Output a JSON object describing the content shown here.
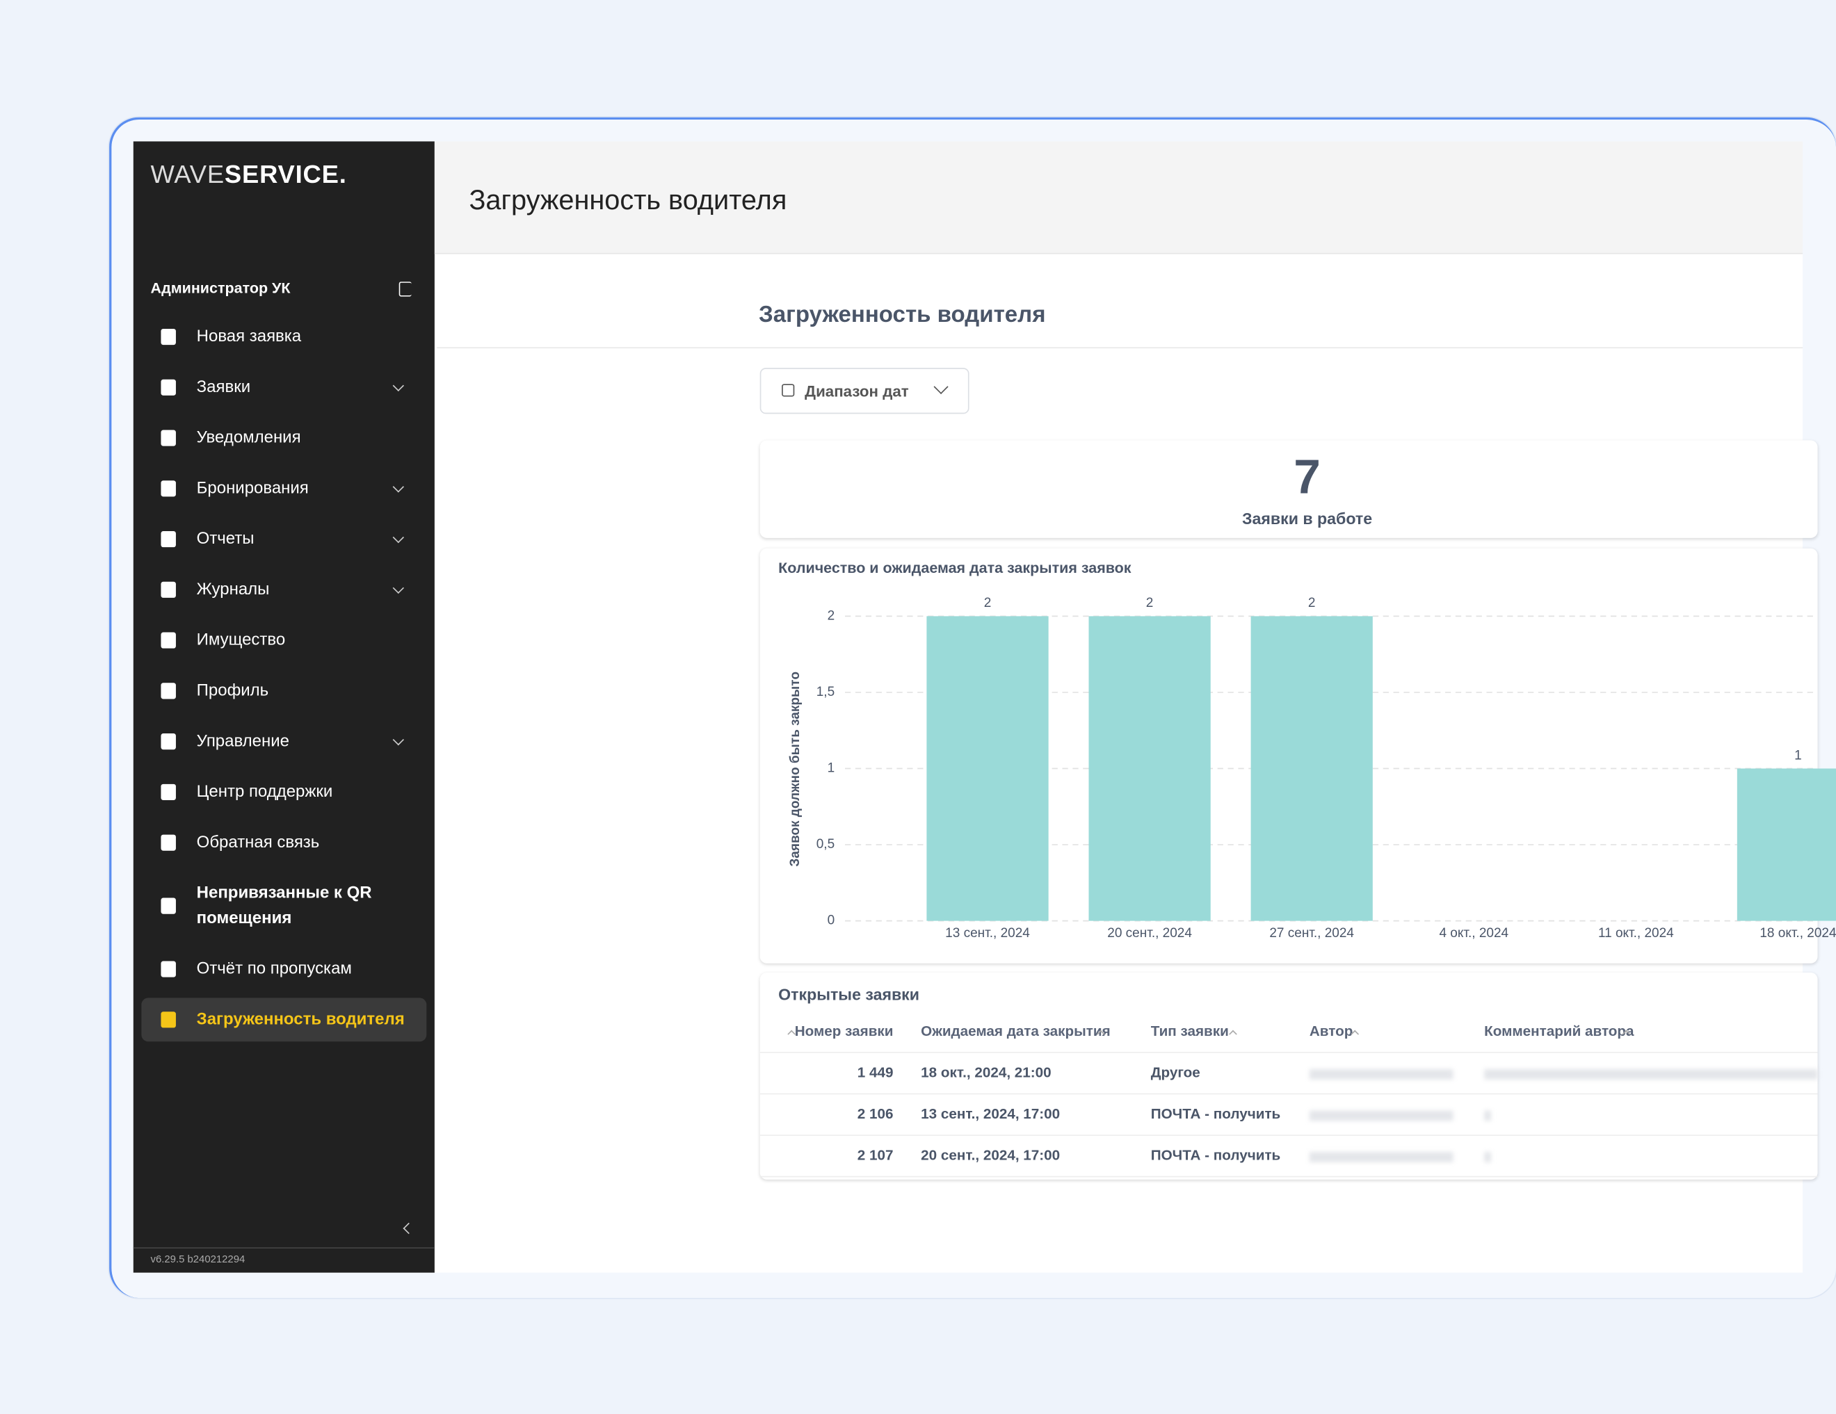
{
  "sidebar": {
    "logo_light": "WAVE",
    "logo_bold": "SERVICE.",
    "user": "Администратор УК",
    "menu": [
      {
        "label": "Новая заявка",
        "expandable": false
      },
      {
        "label": "Заявки",
        "expandable": true
      },
      {
        "label": "Уведомления",
        "expandable": false
      },
      {
        "label": "Бронирования",
        "expandable": true
      },
      {
        "label": "Отчеты",
        "expandable": true
      },
      {
        "label": "Журналы",
        "expandable": true
      },
      {
        "label": "Имущество",
        "expandable": false
      },
      {
        "label": "Профиль",
        "expandable": false
      },
      {
        "label": "Управление",
        "expandable": true
      },
      {
        "label": "Центр поддержки",
        "expandable": false
      },
      {
        "label": "Обратная связь",
        "expandable": false
      },
      {
        "label": "Непривязанные к QR помещения",
        "expandable": false
      },
      {
        "label": "Отчёт по пропускам",
        "expandable": false
      },
      {
        "label": "Загруженность водителя",
        "expandable": false,
        "active": true
      }
    ],
    "version": "v6.29.5 b240212294"
  },
  "header": {
    "title": "Загруженность водителя"
  },
  "page": {
    "title": "Загруженность водителя",
    "date_filter": "Диапазон дат",
    "kpi": {
      "value": 7,
      "label": "Заявки в работе"
    }
  },
  "chart": {
    "type": "bar",
    "title": "Количество и ожидаемая дата закрытия заявок",
    "y_label": "Заявок должно быть закрыто",
    "categories": [
      "13 сент., 2024",
      "20 сент., 2024",
      "27 сент., 2024",
      "4 окт., 2024",
      "11 окт., 2024",
      "18 окт., 2024"
    ],
    "values": [
      2,
      2,
      2,
      0,
      0,
      1
    ],
    "color": "#9adad8",
    "ylim": [
      0,
      2
    ],
    "yticks": [
      0,
      {
        "value": 0.5,
        "label": "0,5"
      },
      1,
      {
        "value": 1.5,
        "label": "1,5"
      },
      2
    ],
    "grid": true
  },
  "table": {
    "title": "Открытые заявки",
    "columns": [
      "Номер заявки",
      "Ожидаемая дата закрытия",
      "Тип заявки",
      "Автор",
      "Комментарий автора"
    ],
    "rows": [
      [
        "1 449",
        "18 окт., 2024, 21:00",
        "Другое"
      ],
      [
        "2 106",
        "13 сент., 2024, 17:00",
        "ПОЧТА - получить"
      ],
      [
        "2 107",
        "20 сент., 2024, 17:00",
        "ПОЧТА - получить"
      ]
    ]
  }
}
